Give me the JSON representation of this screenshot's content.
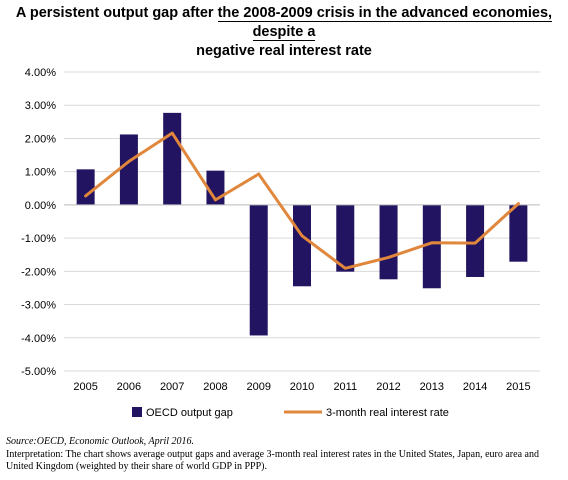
{
  "title": {
    "line1_pre": "A persistent output gap after ",
    "line1_underlined": "the 2008-2009 crisis in the advanced economies, despite a",
    "line2": "negative real interest rate"
  },
  "chart_data": {
    "type": "bar",
    "categories": [
      "2005",
      "2006",
      "2007",
      "2008",
      "2009",
      "2010",
      "2011",
      "2012",
      "2013",
      "2014",
      "2015"
    ],
    "series": [
      {
        "name": "OECD output gap",
        "kind": "bar",
        "color": "#221460",
        "values": [
          1.07,
          2.12,
          2.77,
          1.03,
          -3.93,
          -2.45,
          -2.01,
          -2.24,
          -2.51,
          -2.17,
          -1.71
        ]
      },
      {
        "name": "3-month real interest rate",
        "kind": "line",
        "color": "#e0873c",
        "values": [
          0.27,
          1.31,
          2.16,
          0.15,
          0.93,
          -0.93,
          -1.91,
          -1.58,
          -1.14,
          -1.15,
          0.04
        ]
      }
    ],
    "ylim": [
      -5,
      4
    ],
    "yticks": [
      4,
      3,
      2,
      1,
      0,
      -1,
      -2,
      -3,
      -4,
      -5
    ],
    "ytick_labels": [
      "4.00%",
      "3.00%",
      "2.00%",
      "1.00%",
      "0.00%",
      "-1.00%",
      "-2.00%",
      "-3.00%",
      "-4.00%",
      "-5.00%"
    ],
    "grid": true,
    "legend_position": "bottom",
    "xlabel": "",
    "ylabel": ""
  },
  "footer": {
    "source_label": "Source",
    "source_text": ":OECD, Economic Outlook, April 2016.",
    "interpretation": "Interpretation: The chart shows average output gaps and average 3-month real interest rates in the United States, Japan, euro area and United Kingdom (weighted by their share of world GDP in PPP)."
  }
}
